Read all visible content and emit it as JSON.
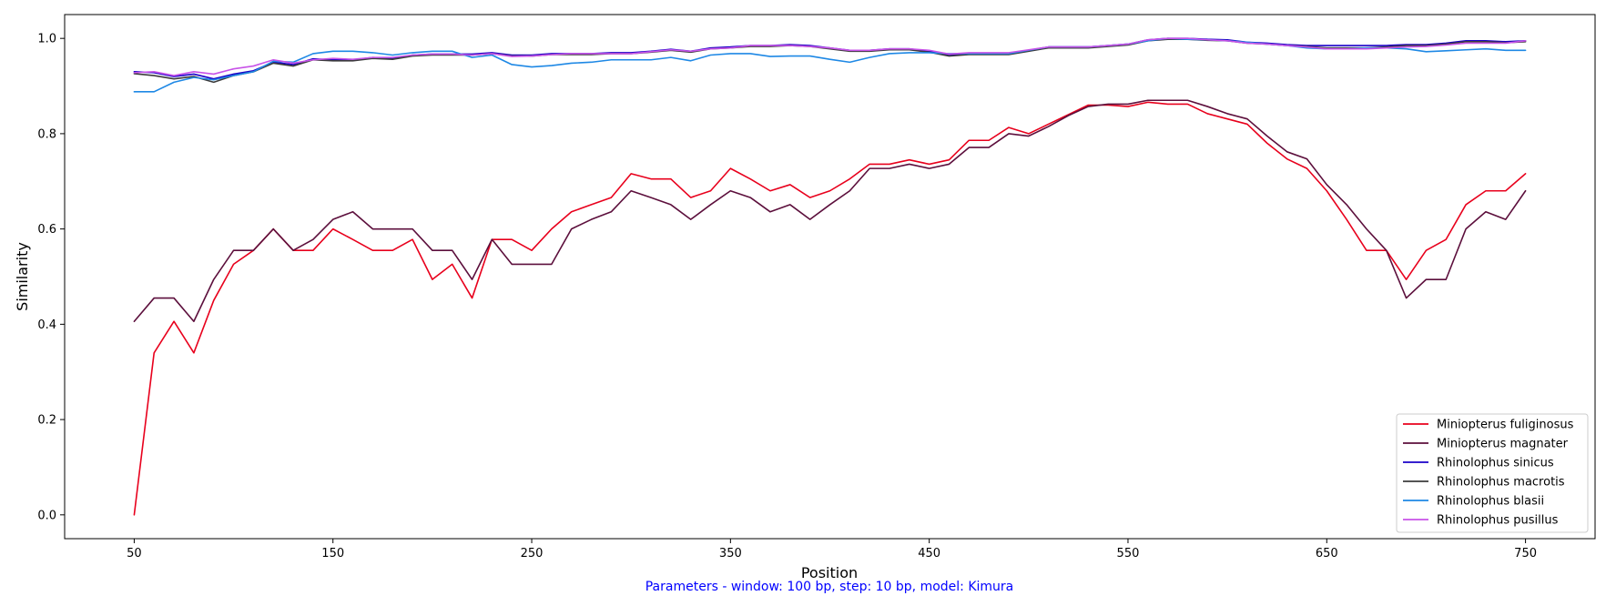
{
  "caption": "Parameters - window: 100 bp, step: 10 bp, model: Kimura",
  "chart_data": {
    "type": "line",
    "title": "",
    "xlabel": "Position",
    "ylabel": "Similarity",
    "xlim": [
      15,
      785
    ],
    "ylim": [
      -0.05,
      1.05
    ],
    "xticks": [
      50,
      150,
      250,
      350,
      450,
      550,
      650,
      750
    ],
    "yticks": [
      0.0,
      0.2,
      0.4,
      0.6,
      0.8,
      1.0
    ],
    "ytick_labels": [
      "0.0",
      "0.2",
      "0.4",
      "0.6",
      "0.8",
      "1.0"
    ],
    "grid": false,
    "legend_position": "bottom-right",
    "x": [
      50,
      60,
      70,
      80,
      90,
      100,
      110,
      120,
      130,
      140,
      150,
      160,
      170,
      180,
      190,
      200,
      210,
      220,
      230,
      240,
      250,
      260,
      270,
      280,
      290,
      300,
      310,
      320,
      330,
      340,
      350,
      360,
      370,
      380,
      390,
      400,
      410,
      420,
      430,
      440,
      450,
      460,
      470,
      480,
      490,
      500,
      510,
      520,
      530,
      540,
      550,
      560,
      570,
      580,
      590,
      600,
      610,
      620,
      630,
      640,
      650,
      660,
      670,
      680,
      690,
      700,
      710,
      720,
      730,
      740,
      750
    ],
    "series": [
      {
        "name": "Miniopterus fuliginosus",
        "color": "#e8001c",
        "values": [
          0.0,
          0.34,
          0.406,
          0.34,
          0.45,
          0.526,
          0.555,
          0.6,
          0.555,
          0.555,
          0.6,
          0.578,
          0.555,
          0.555,
          0.578,
          0.494,
          0.526,
          0.455,
          0.578,
          0.578,
          0.555,
          0.6,
          0.636,
          0.651,
          0.666,
          0.716,
          0.705,
          0.705,
          0.666,
          0.68,
          0.727,
          0.705,
          0.68,
          0.693,
          0.666,
          0.68,
          0.705,
          0.736,
          0.736,
          0.745,
          0.736,
          0.745,
          0.786,
          0.786,
          0.813,
          0.8,
          0.82,
          0.84,
          0.86,
          0.86,
          0.857,
          0.866,
          0.862,
          0.862,
          0.842,
          0.831,
          0.82,
          0.78,
          0.747,
          0.727,
          0.68,
          0.62,
          0.555,
          0.555,
          0.494,
          0.555,
          0.578,
          0.651,
          0.68,
          0.68,
          0.716
        ]
      },
      {
        "name": "Miniopterus magnater",
        "color": "#5c0f3c",
        "values": [
          0.406,
          0.455,
          0.455,
          0.406,
          0.494,
          0.555,
          0.555,
          0.6,
          0.555,
          0.578,
          0.62,
          0.636,
          0.6,
          0.6,
          0.6,
          0.555,
          0.555,
          0.494,
          0.578,
          0.526,
          0.526,
          0.526,
          0.6,
          0.62,
          0.636,
          0.68,
          0.666,
          0.651,
          0.62,
          0.651,
          0.68,
          0.666,
          0.636,
          0.651,
          0.62,
          0.651,
          0.68,
          0.727,
          0.727,
          0.736,
          0.727,
          0.736,
          0.771,
          0.771,
          0.8,
          0.795,
          0.815,
          0.838,
          0.857,
          0.862,
          0.862,
          0.87,
          0.87,
          0.87,
          0.857,
          0.842,
          0.831,
          0.795,
          0.762,
          0.747,
          0.693,
          0.651,
          0.6,
          0.555,
          0.455,
          0.494,
          0.494,
          0.6,
          0.636,
          0.62,
          0.68
        ]
      },
      {
        "name": "Rhinolophus sinicus",
        "color": "#1a00c8",
        "values": [
          0.93,
          0.928,
          0.92,
          0.925,
          0.915,
          0.925,
          0.932,
          0.95,
          0.945,
          0.957,
          0.955,
          0.955,
          0.96,
          0.958,
          0.965,
          0.967,
          0.967,
          0.967,
          0.97,
          0.965,
          0.965,
          0.968,
          0.968,
          0.968,
          0.97,
          0.97,
          0.973,
          0.977,
          0.973,
          0.98,
          0.982,
          0.985,
          0.985,
          0.987,
          0.985,
          0.98,
          0.975,
          0.975,
          0.978,
          0.978,
          0.973,
          0.965,
          0.968,
          0.968,
          0.968,
          0.975,
          0.982,
          0.982,
          0.982,
          0.985,
          0.988,
          0.997,
          1.0,
          1.0,
          0.998,
          0.997,
          0.992,
          0.99,
          0.987,
          0.985,
          0.985,
          0.985,
          0.985,
          0.985,
          0.987,
          0.987,
          0.99,
          0.995,
          0.995,
          0.993,
          0.995
        ]
      },
      {
        "name": "Rhinolophus macrotis",
        "color": "#3c3c3c",
        "values": [
          0.926,
          0.922,
          0.915,
          0.92,
          0.908,
          0.922,
          0.93,
          0.948,
          0.942,
          0.955,
          0.953,
          0.953,
          0.958,
          0.956,
          0.963,
          0.965,
          0.965,
          0.965,
          0.968,
          0.963,
          0.963,
          0.966,
          0.966,
          0.966,
          0.968,
          0.968,
          0.971,
          0.975,
          0.971,
          0.978,
          0.98,
          0.983,
          0.983,
          0.985,
          0.983,
          0.978,
          0.973,
          0.973,
          0.976,
          0.976,
          0.971,
          0.963,
          0.966,
          0.966,
          0.966,
          0.973,
          0.98,
          0.98,
          0.98,
          0.983,
          0.986,
          0.995,
          0.998,
          0.998,
          0.996,
          0.995,
          0.99,
          0.988,
          0.985,
          0.983,
          0.98,
          0.98,
          0.98,
          0.982,
          0.985,
          0.985,
          0.988,
          0.993,
          0.993,
          0.991,
          0.993
        ]
      },
      {
        "name": "Rhinolophus blasii",
        "color": "#1e88e5",
        "values": [
          0.888,
          0.888,
          0.908,
          0.918,
          0.913,
          0.922,
          0.93,
          0.952,
          0.95,
          0.968,
          0.973,
          0.973,
          0.97,
          0.965,
          0.97,
          0.973,
          0.973,
          0.96,
          0.965,
          0.945,
          0.94,
          0.943,
          0.948,
          0.95,
          0.955,
          0.955,
          0.955,
          0.96,
          0.953,
          0.965,
          0.968,
          0.968,
          0.962,
          0.963,
          0.963,
          0.956,
          0.95,
          0.96,
          0.968,
          0.97,
          0.97,
          0.968,
          0.968,
          0.968,
          0.968,
          0.975,
          0.982,
          0.982,
          0.982,
          0.985,
          0.988,
          0.995,
          1.0,
          0.998,
          0.997,
          0.995,
          0.992,
          0.988,
          0.985,
          0.98,
          0.978,
          0.978,
          0.98,
          0.98,
          0.978,
          0.972,
          0.974,
          0.976,
          0.978,
          0.975,
          0.975
        ]
      },
      {
        "name": "Rhinolophus pusillus",
        "color": "#c853e8",
        "values": [
          0.928,
          0.93,
          0.922,
          0.93,
          0.925,
          0.936,
          0.942,
          0.955,
          0.948,
          0.955,
          0.958,
          0.956,
          0.96,
          0.96,
          0.965,
          0.967,
          0.967,
          0.965,
          0.968,
          0.962,
          0.963,
          0.966,
          0.968,
          0.968,
          0.968,
          0.968,
          0.972,
          0.976,
          0.973,
          0.978,
          0.98,
          0.985,
          0.985,
          0.985,
          0.983,
          0.98,
          0.975,
          0.975,
          0.978,
          0.978,
          0.975,
          0.967,
          0.97,
          0.97,
          0.97,
          0.976,
          0.982,
          0.982,
          0.982,
          0.985,
          0.988,
          0.997,
          1.0,
          1.0,
          0.997,
          0.995,
          0.99,
          0.988,
          0.985,
          0.982,
          0.978,
          0.978,
          0.978,
          0.98,
          0.982,
          0.983,
          0.986,
          0.99,
          0.99,
          0.99,
          0.995
        ]
      }
    ]
  }
}
